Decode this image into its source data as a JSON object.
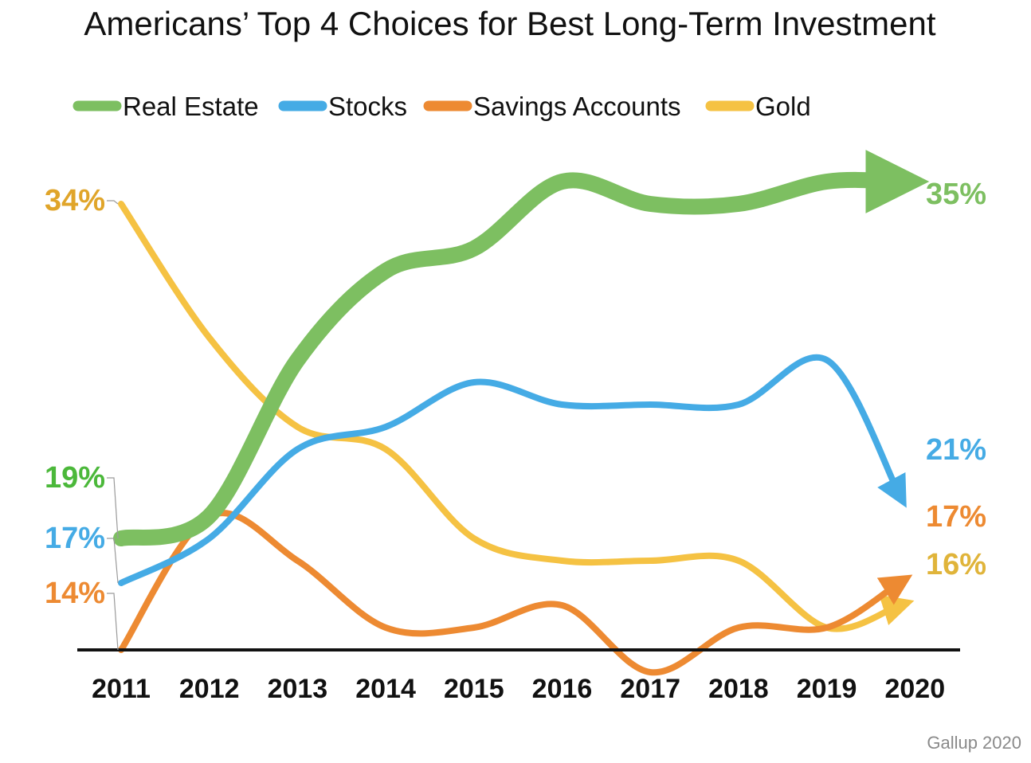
{
  "chart_data": {
    "type": "line",
    "title": "Americans’ Top 4 Choices for Best Long-Term Investment",
    "x": [
      "2011",
      "2012",
      "2013",
      "2014",
      "2015",
      "2016",
      "2017",
      "2018",
      "2019",
      "2020"
    ],
    "series": [
      {
        "name": "Real Estate",
        "color": "#7dbf61",
        "values": [
          19,
          20,
          27,
          31,
          32,
          35,
          34,
          34,
          35,
          35
        ]
      },
      {
        "name": "Stocks",
        "color": "#45abe5",
        "values": [
          17,
          19,
          23,
          24,
          26,
          25,
          25,
          25,
          27,
          21
        ]
      },
      {
        "name": "Savings Accounts",
        "color": "#ed8a32",
        "values": [
          14,
          20,
          18,
          15,
          15,
          16,
          13,
          15,
          15,
          17
        ]
      },
      {
        "name": "Gold",
        "color": "#f5c243",
        "values": [
          34,
          28,
          24,
          23,
          19,
          18,
          18,
          18,
          15,
          16
        ]
      }
    ],
    "start_labels": [
      "19%",
      "17%",
      "14%",
      "34%"
    ],
    "end_labels": [
      "35%",
      "21%",
      "17%",
      "16%"
    ],
    "legend_position": "top",
    "grid": false,
    "source": "Gallup 2020"
  }
}
